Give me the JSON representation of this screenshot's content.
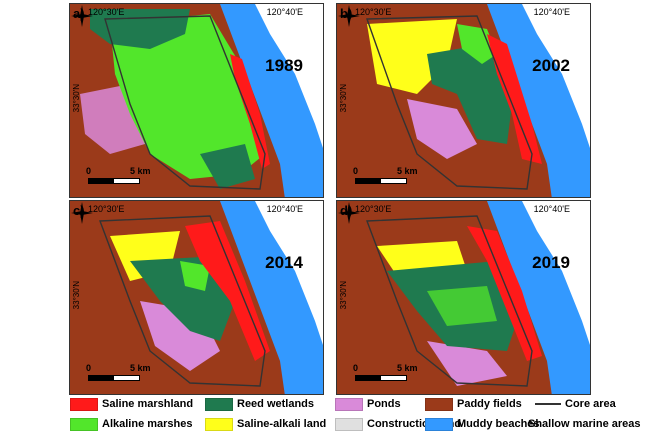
{
  "colors": {
    "saline_marshland": "#ff1a1a",
    "alkaline_marshes": "#52e62b",
    "reed_wetlands": "#1f7a4f",
    "saline_alkali_land": "#ffff1a",
    "ponds": "#d98ad9",
    "construction_land": "#e0e0e0",
    "paddy_fields": "#9b3a1a",
    "muddy_beaches": "#3399ff",
    "shallow_marine": "#ffffff",
    "core_area": "#333333"
  },
  "panels": [
    {
      "letter": "a)",
      "lon_left": "120°30'E",
      "lon_right": "120°40'E",
      "lat": "33°30'N",
      "year": "1989",
      "scale_0": "0",
      "scale_5": "5 km"
    },
    {
      "letter": "b)",
      "lon_left": "120°30'E",
      "lon_right": "120°40'E",
      "lat": "33°30'N",
      "year": "2002",
      "scale_0": "0",
      "scale_5": "5 km"
    },
    {
      "letter": "c)",
      "lon_left": "120°30'E",
      "lon_right": "120°40'E",
      "lat": "33°30'N",
      "year": "2014",
      "scale_0": "0",
      "scale_5": "5 km"
    },
    {
      "letter": "d)",
      "lon_left": "120°30'E",
      "lon_right": "120°40'E",
      "lat": "33°30'N",
      "year": "2019",
      "scale_0": "0",
      "scale_5": "5 km"
    }
  ],
  "compass_label": "N",
  "legend": {
    "saline_marshland": "Saline marshland",
    "alkaline_marshes": "Alkaline marshes",
    "reed_wetlands": "Reed wetlands",
    "saline_alkali_land": "Saline-alkali land",
    "ponds": "Ponds",
    "construction_land": "Construction land",
    "paddy_fields": "Paddy fields",
    "core_area": "Core area",
    "muddy_beaches": "Muddy beaches",
    "shallow_marine": "Shallow marine areas"
  }
}
